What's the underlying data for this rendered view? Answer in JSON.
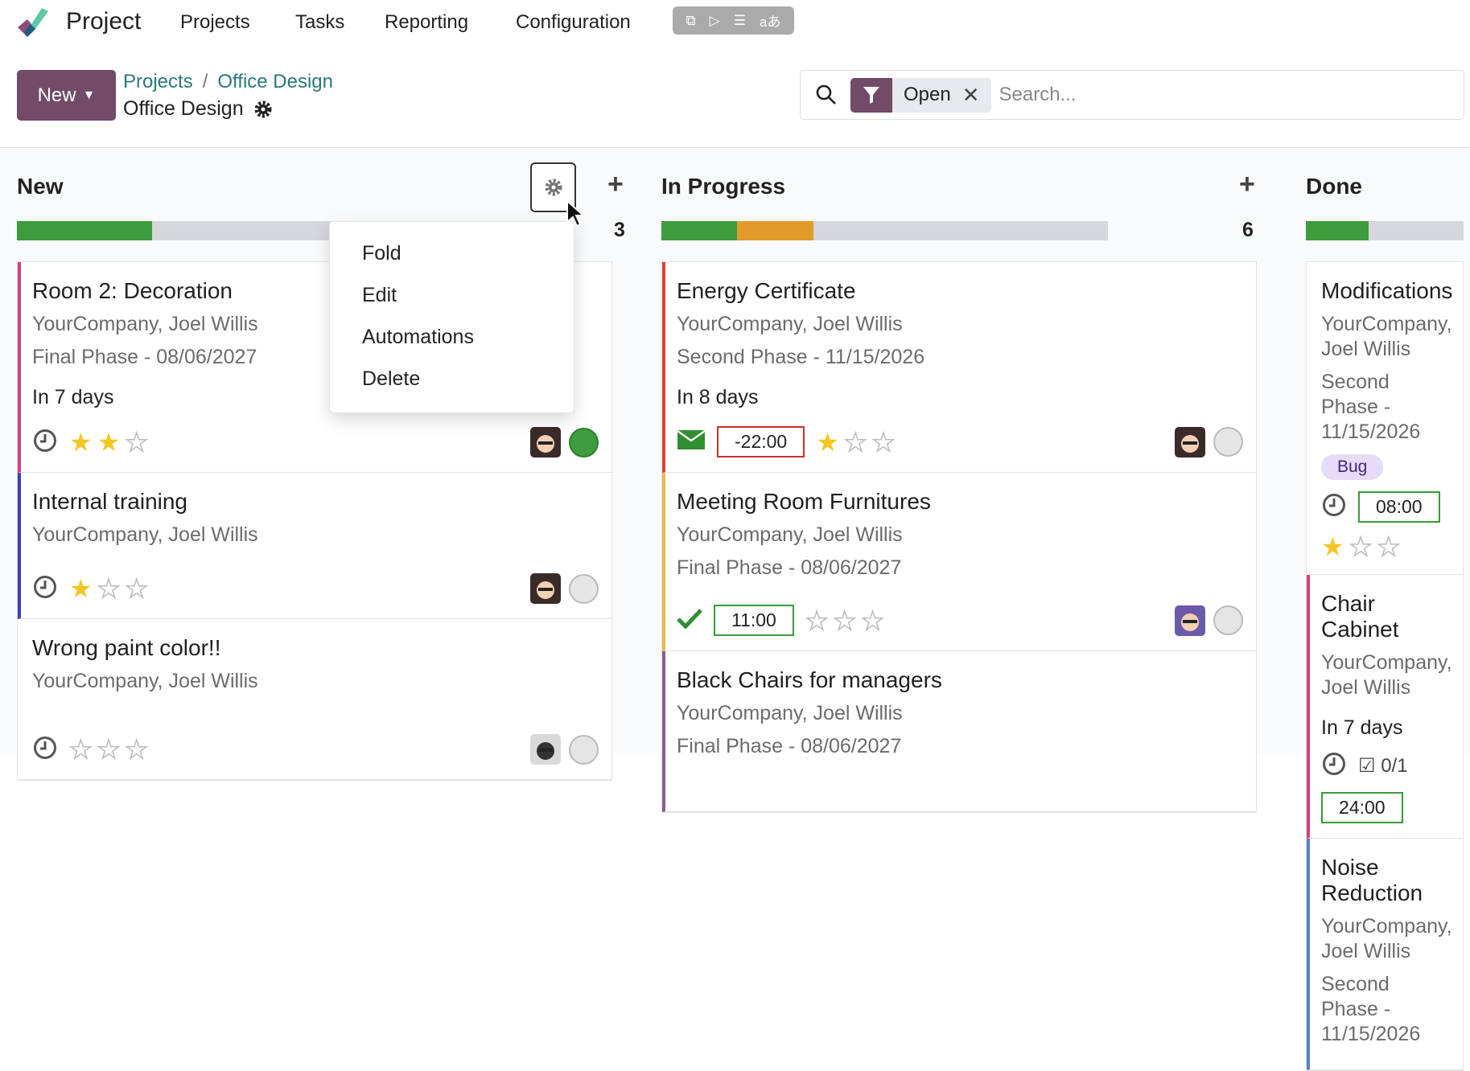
{
  "nav": {
    "app_name": "Project",
    "items": [
      "Projects",
      "Tasks",
      "Reporting",
      "Configuration"
    ]
  },
  "control": {
    "new_label": "New",
    "breadcrumb": [
      "Projects",
      "Office Design"
    ],
    "current": "Office Design"
  },
  "search": {
    "facet": "Open",
    "placeholder": "Search..."
  },
  "colors": {
    "brand": "#714b67",
    "green": "#3e9c3e",
    "orange": "#e29b2a",
    "link": "#2b7a78"
  },
  "dropdown": {
    "items": [
      "Fold",
      "Edit",
      "Automations",
      "Delete"
    ]
  },
  "columns": [
    {
      "title": "New",
      "count": "3",
      "progress": {
        "done_pct": 25,
        "warn_pct": 0
      },
      "cards": [
        {
          "title": "Room 2: Decoration",
          "sub": [
            "YourCompany, Joel Willis",
            "Final Phase - 08/06/2027"
          ],
          "deadline": "In 7 days",
          "icon": "clock-icon",
          "stars": 2,
          "status": "green",
          "avatar": "man-glasses",
          "border": "#d63f7f",
          "h": 262
        },
        {
          "title": "Internal training",
          "sub": [
            "YourCompany, Joel Willis"
          ],
          "icon": "clock-icon",
          "stars": 1,
          "status": "grey",
          "avatar": "man-glasses",
          "border": "#3a3fbf",
          "h": 182
        },
        {
          "title": "Wrong paint color!!",
          "sub": [
            "YourCompany, Joel Willis"
          ],
          "icon": "clock-icon",
          "stars": 0,
          "status": "grey",
          "avatar": "robot",
          "border": "transparent",
          "h": 200
        }
      ]
    },
    {
      "title": "In Progress",
      "count": "6",
      "progress": {
        "done_pct": 17,
        "warn_pct": 17
      },
      "cards": [
        {
          "title": "Energy Certificate",
          "sub": [
            "YourCompany, Joel Willis",
            "Second Phase - 11/15/2026"
          ],
          "deadline": "In 8 days",
          "icon": "envelope-icon",
          "time": "-22:00",
          "time_color": "#c9302c",
          "stars": 1,
          "status": "grey",
          "avatar": "man-glasses",
          "border": "#d9433d",
          "h": 262
        },
        {
          "title": "Meeting Room Furnitures",
          "sub": [
            "YourCompany, Joel Willis",
            "Final Phase - 08/06/2027"
          ],
          "icon": "check-icon",
          "time": "11:00",
          "time_color": "#3a9a3a",
          "stars": 0,
          "status": "grey",
          "avatar": "man-beard",
          "border": "#e9b949",
          "h": 222
        },
        {
          "title": "Black Chairs for managers",
          "sub": [
            "YourCompany, Joel Willis",
            "Final Phase - 08/06/2027"
          ],
          "border": "#8e5c8e",
          "h": 200
        }
      ]
    },
    {
      "title": "Done",
      "progress": {
        "done_pct": 40,
        "warn_pct": 0
      },
      "cards": [
        {
          "title": "Modifications",
          "sub": [
            "YourCompany, Joel Willis",
            "Second Phase - 11/15/2026"
          ],
          "tag": "Bug",
          "icon": "clock-icon",
          "time": "08:00",
          "time_color": "#3a9a3a",
          "stars": 1,
          "border": "transparent",
          "h": 255
        },
        {
          "title": "Chair Cabinet",
          "sub": [
            "YourCompany, Joel Willis"
          ],
          "deadline": "In 7 days",
          "icon": "clock-icon",
          "checklist": "0/1",
          "time": "24:00",
          "time_color": "#3a9a3a",
          "border": "#d63f7f",
          "h": 224
        },
        {
          "title": "Noise Reduction",
          "sub": [
            "YourCompany, Joel Willis",
            "Second Phase - 11/15/2026"
          ],
          "border": "#5b7fbf",
          "h": 200
        }
      ]
    }
  ]
}
